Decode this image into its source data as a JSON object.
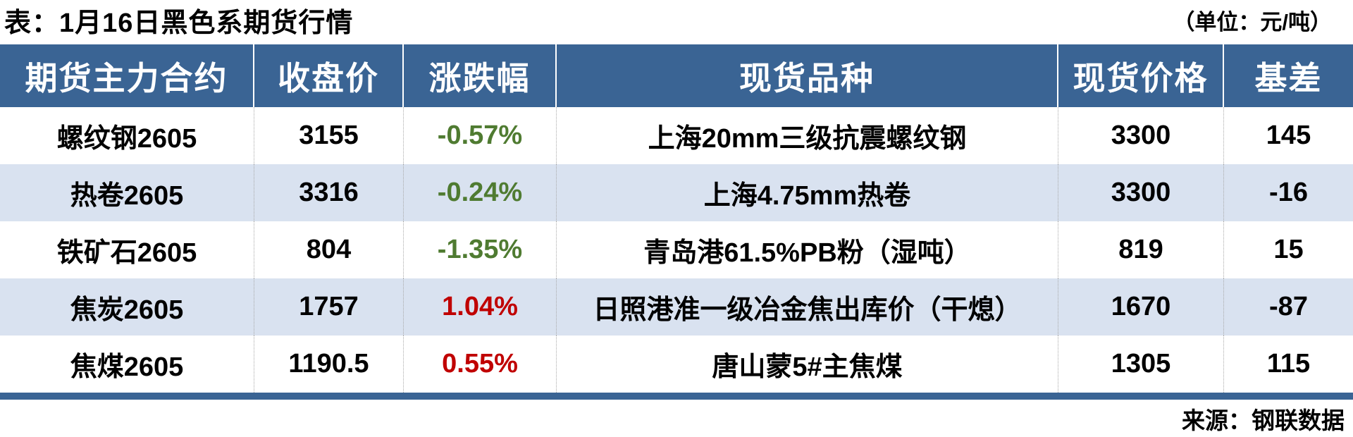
{
  "page": {
    "title": "表：1月16日黑色系期货行情",
    "unit_note": "（单位：元/吨）",
    "source": "来源：钢联数据"
  },
  "colors": {
    "header_bg": "#3A6494",
    "alt_row_bg": "#D9E2F0",
    "positive_change": "#C00000",
    "negative_change": "#4F7B31"
  },
  "table": {
    "headers": [
      "期货主力合约",
      "收盘价",
      "涨跌幅",
      "现货品种",
      "现货价格",
      "基差"
    ],
    "rows": [
      {
        "contract": "螺纹钢2605",
        "close": "3155",
        "change": "-0.57%",
        "change_style": "color:#4F7B31",
        "spot": "上海20mm三级抗震螺纹钢",
        "spot_price": "3300",
        "basis": "145"
      },
      {
        "contract": "热卷2605",
        "close": "3316",
        "change": "-0.24%",
        "change_style": "color:#4F7B31",
        "spot": "上海4.75mm热卷",
        "spot_price": "3300",
        "basis": "-16"
      },
      {
        "contract": "铁矿石2605",
        "close": "804",
        "change": "-1.35%",
        "change_style": "color:#4F7B31",
        "spot": "青岛港61.5%PB粉（湿吨）",
        "spot_price": "819",
        "basis": "15"
      },
      {
        "contract": "焦炭2605",
        "close": "1757",
        "change": "1.04%",
        "change_style": "color:#C00000",
        "spot": "日照港准一级冶金焦出库价（干熄）",
        "spot_price": "1670",
        "basis": "-87"
      },
      {
        "contract": "焦煤2605",
        "close": "1190.5",
        "change": "0.55%",
        "change_style": "color:#C00000",
        "spot": "唐山蒙5#主焦煤",
        "spot_price": "1305",
        "basis": "115"
      }
    ]
  },
  "chart_data": {
    "type": "table",
    "title": "表：1月16日黑色系期货行情",
    "unit": "元/吨",
    "columns": [
      "期货主力合约",
      "收盘价",
      "涨跌幅",
      "现货品种",
      "现货价格",
      "基差"
    ],
    "rows": [
      [
        "螺纹钢2605",
        3155,
        "-0.57%",
        "上海20mm三级抗震螺纹钢",
        3300,
        145
      ],
      [
        "热卷2605",
        3316,
        "-0.24%",
        "上海4.75mm热卷",
        3300,
        -16
      ],
      [
        "铁矿石2605",
        804,
        "-1.35%",
        "青岛港61.5%PB粉（湿吨）",
        819,
        15
      ],
      [
        "焦炭2605",
        1757,
        "1.04%",
        "日照港准一级冶金焦出库价（干熄）",
        1670,
        -87
      ],
      [
        "焦煤2605",
        1190.5,
        "0.55%",
        "唐山蒙5#主焦煤",
        1305,
        115
      ]
    ],
    "notes": {
      "positive_change_color": "#C00000",
      "negative_change_color": "#4F7B31",
      "source": "钢联数据"
    }
  }
}
